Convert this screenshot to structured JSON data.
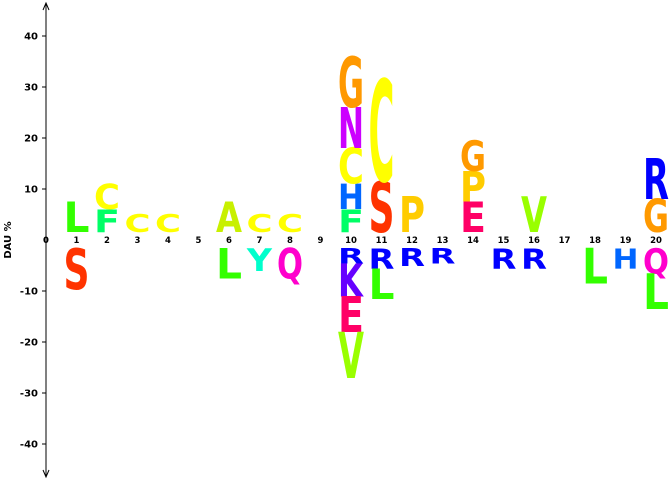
{
  "chart_data": {
    "type": "sequence-logo",
    "ylabel": "DAU %",
    "ylim": [
      -45,
      45
    ],
    "yticks": [
      40,
      30,
      20,
      10,
      0,
      -10,
      -20,
      -30,
      -40
    ],
    "xticks": [
      0,
      1,
      2,
      3,
      4,
      5,
      6,
      7,
      8,
      9,
      10,
      11,
      12,
      13,
      14,
      15,
      16,
      17,
      18,
      19,
      20
    ],
    "colors": {
      "A": "#c8f000",
      "C": "#ffff00",
      "D": "#ff0000",
      "E": "#ff0066",
      "F": "#00ff66",
      "G": "#ff9900",
      "H": "#0066ff",
      "I": "#66ff00",
      "K": "#6600ff",
      "L": "#33ff00",
      "M": "#00ff00",
      "N": "#cc00ff",
      "P": "#ffcc00",
      "Q": "#ff00cc",
      "R": "#0000ff",
      "S": "#ff3300",
      "T": "#ff6600",
      "V": "#99ff00",
      "W": "#00ccff",
      "Y": "#00ffcc"
    },
    "positions": [
      {
        "pos": 1,
        "up": [
          {
            "aa": "L",
            "h": 6
          }
        ],
        "down": [
          {
            "aa": "S",
            "h": 8
          }
        ]
      },
      {
        "pos": 2,
        "up": [
          {
            "aa": "F",
            "h": 4.5
          },
          {
            "aa": "C",
            "h": 5
          }
        ],
        "down": []
      },
      {
        "pos": 3,
        "up": [
          {
            "aa": "C",
            "h": 3.5
          }
        ],
        "down": []
      },
      {
        "pos": 4,
        "up": [
          {
            "aa": "C",
            "h": 3.5
          }
        ],
        "down": []
      },
      {
        "pos": 5,
        "up": [],
        "down": []
      },
      {
        "pos": 6,
        "up": [
          {
            "aa": "A",
            "h": 6
          }
        ],
        "down": [
          {
            "aa": "L",
            "h": 6
          }
        ]
      },
      {
        "pos": 7,
        "up": [
          {
            "aa": "C",
            "h": 3.5
          }
        ],
        "down": [
          {
            "aa": "Y",
            "h": 4.5
          }
        ]
      },
      {
        "pos": 8,
        "up": [
          {
            "aa": "C",
            "h": 3.5
          }
        ],
        "down": [
          {
            "aa": "Q",
            "h": 6
          }
        ]
      },
      {
        "pos": 9,
        "up": [],
        "down": []
      },
      {
        "pos": 10,
        "up": [
          {
            "aa": "F",
            "h": 4.5
          },
          {
            "aa": "H",
            "h": 5
          },
          {
            "aa": "C",
            "h": 7
          },
          {
            "aa": "N",
            "h": 8
          },
          {
            "aa": "G",
            "h": 10
          }
        ],
        "down": [
          {
            "aa": "R",
            "h": 3
          },
          {
            "aa": "K",
            "h": 6.5
          },
          {
            "aa": "E",
            "h": 7
          },
          {
            "aa": "V",
            "h": 9
          }
        ]
      },
      {
        "pos": 11,
        "up": [
          {
            "aa": "S",
            "h": 10
          },
          {
            "aa": "C",
            "h": 20
          }
        ],
        "down": [
          {
            "aa": "R",
            "h": 4
          },
          {
            "aa": "L",
            "h": 6
          }
        ]
      },
      {
        "pos": 12,
        "up": [
          {
            "aa": "P",
            "h": 7
          }
        ],
        "down": [
          {
            "aa": "R",
            "h": 3.5
          }
        ]
      },
      {
        "pos": 13,
        "up": [],
        "down": [
          {
            "aa": "R",
            "h": 3
          }
        ]
      },
      {
        "pos": 14,
        "up": [
          {
            "aa": "E",
            "h": 6
          },
          {
            "aa": "P",
            "h": 6
          },
          {
            "aa": "G",
            "h": 6
          }
        ],
        "down": []
      },
      {
        "pos": 15,
        "up": [],
        "down": [
          {
            "aa": "R",
            "h": 4
          }
        ]
      },
      {
        "pos": 16,
        "up": [
          {
            "aa": "V",
            "h": 7
          }
        ],
        "down": [
          {
            "aa": "R",
            "h": 4
          }
        ]
      },
      {
        "pos": 17,
        "up": [],
        "down": []
      },
      {
        "pos": 18,
        "up": [],
        "down": [
          {
            "aa": "L",
            "h": 7
          }
        ]
      },
      {
        "pos": 19,
        "up": [],
        "down": [
          {
            "aa": "H",
            "h": 4
          }
        ]
      },
      {
        "pos": 20,
        "up": [
          {
            "aa": "G",
            "h": 6.5
          },
          {
            "aa": "R",
            "h": 8
          }
        ],
        "down": [
          {
            "aa": "Q",
            "h": 5
          },
          {
            "aa": "L",
            "h": 7
          }
        ]
      }
    ]
  }
}
